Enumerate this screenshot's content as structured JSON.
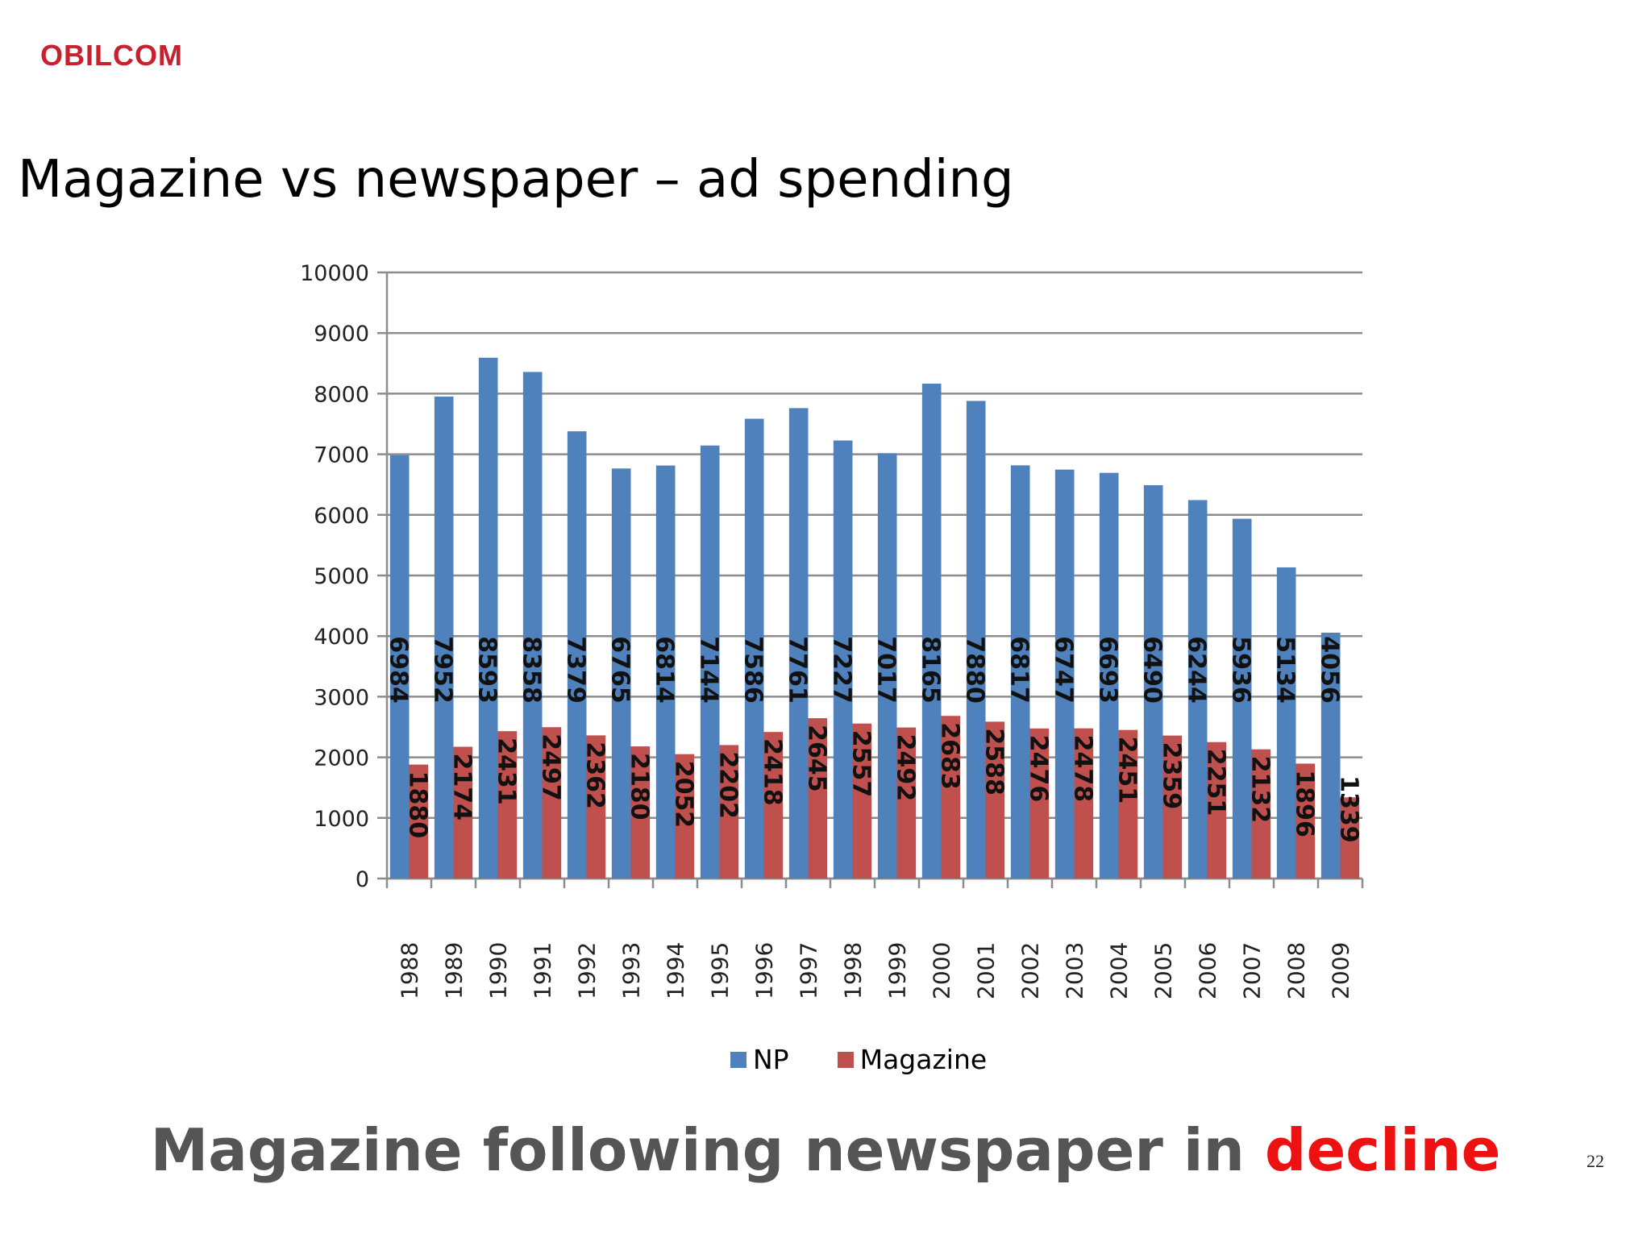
{
  "logo": {
    "text": "OBILCOM"
  },
  "slide": {
    "title": "Magazine vs newspaper – ad spending",
    "footer_lead": "Magazine following newspaper in ",
    "footer_accent": "decline",
    "page_number": "22"
  },
  "colors": {
    "np": "#4f81bd",
    "magazine": "#c0504d",
    "accent": "#ee1111",
    "footer_text": "#555555",
    "logo": "#c8202d"
  },
  "chart_data": {
    "type": "bar",
    "categories": [
      "1988",
      "1989",
      "1990",
      "1991",
      "1992",
      "1993",
      "1994",
      "1995",
      "1996",
      "1997",
      "1998",
      "1999",
      "2000",
      "2001",
      "2002",
      "2003",
      "2004",
      "2005",
      "2006",
      "2007",
      "2008",
      "2009"
    ],
    "series": [
      {
        "name": "NP",
        "values": [
          6984,
          7952,
          8593,
          8358,
          7379,
          6765,
          6814,
          7144,
          7586,
          7761,
          7227,
          7017,
          8165,
          7880,
          6817,
          6747,
          6693,
          6490,
          6244,
          5936,
          5134,
          4056
        ]
      },
      {
        "name": "Magazine",
        "values": [
          1880,
          2174,
          2431,
          2497,
          2362,
          2180,
          2052,
          2202,
          2418,
          2645,
          2557,
          2492,
          2683,
          2588,
          2476,
          2478,
          2451,
          2359,
          2251,
          2132,
          1896,
          1339
        ]
      }
    ],
    "ylim": [
      0,
      10000
    ],
    "yticks": [
      0,
      1000,
      2000,
      3000,
      4000,
      5000,
      6000,
      7000,
      8000,
      9000,
      10000
    ],
    "grid": true,
    "legend": "bottom",
    "data_labels": "rotated, inside bars",
    "xlabel": "",
    "ylabel": ""
  }
}
